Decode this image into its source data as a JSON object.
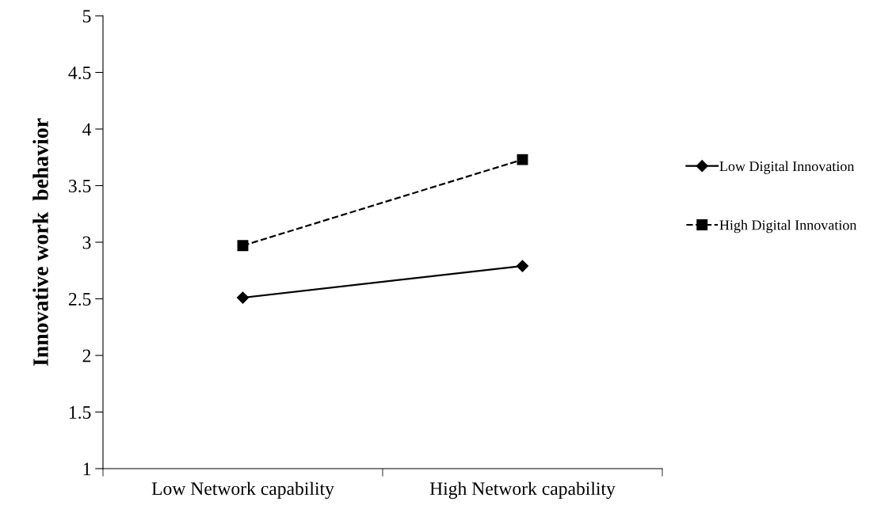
{
  "chart_data": {
    "type": "line",
    "ylabel": "Innovative work  behavior",
    "categories": [
      "Low Network capability",
      "High Network capability"
    ],
    "series": [
      {
        "name": "Low Digital Innovation",
        "color": "#000000",
        "values": [
          2.51,
          2.79
        ],
        "marker": "diamond",
        "line_style": "solid"
      },
      {
        "name": "High Digital Innovation",
        "color": "#000000",
        "values": [
          2.97,
          3.73
        ],
        "marker": "square",
        "line_style": "dashed"
      }
    ],
    "ylim": [
      1,
      5
    ],
    "yticks": [
      1,
      1.5,
      2,
      2.5,
      3,
      3.5,
      4,
      4.5,
      5
    ],
    "grid": false,
    "legend": "right"
  }
}
